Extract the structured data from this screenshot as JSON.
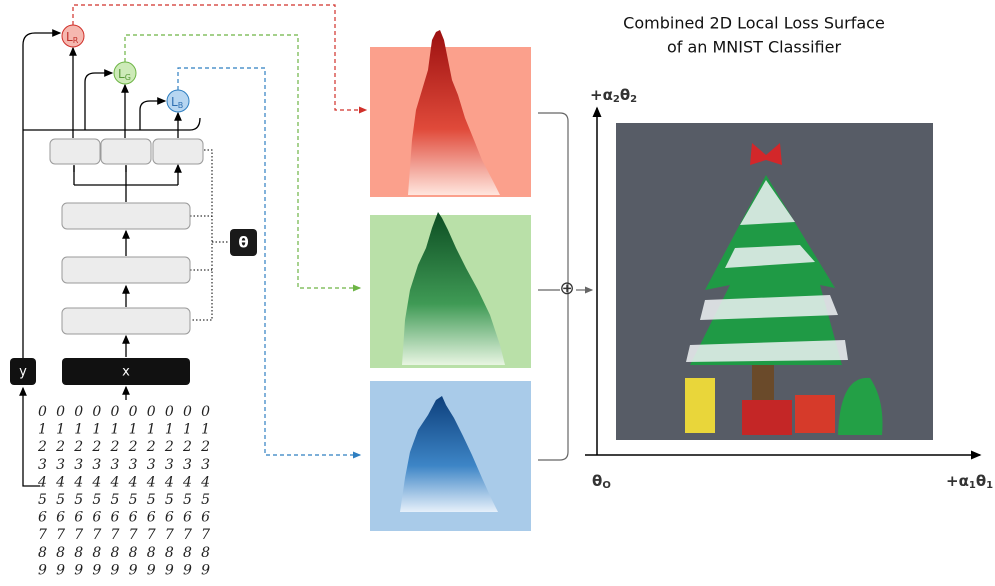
{
  "title_lines": [
    "Combined 2D Local Loss Surface",
    "of an MNIST Classifier"
  ],
  "losses": [
    {
      "main": "L",
      "sub": "R"
    },
    {
      "main": "L",
      "sub": "G"
    },
    {
      "main": "L",
      "sub": "B"
    }
  ],
  "theta": "θ",
  "input_y": "y",
  "input_x": "x",
  "combine": "⊕",
  "axes": {
    "y_label": [
      [
        "+α",
        "2"
      ],
      [
        "θ",
        "2"
      ]
    ],
    "origin": [
      [
        "θ",
        "O"
      ]
    ],
    "x_label": [
      [
        "+α",
        "1"
      ],
      [
        "θ",
        "1"
      ]
    ]
  },
  "digits": [
    "0000000000",
    "1111111111",
    "2222222222",
    "3333333333",
    "4444444444",
    "5555555555",
    "6666666666",
    "7777777777",
    "8888888888",
    "9999999999"
  ]
}
